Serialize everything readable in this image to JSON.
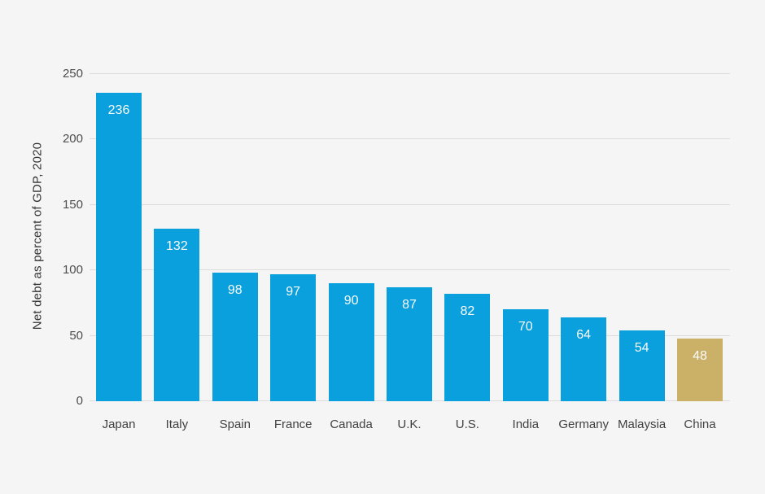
{
  "chart_data": {
    "type": "bar",
    "title": "",
    "ylabel": "Net debt as percent of GDP, 2020",
    "xlabel": "",
    "categories": [
      "Japan",
      "Italy",
      "Spain",
      "France",
      "Canada",
      "U.K.",
      "U.S.",
      "India",
      "Germany",
      "Malaysia",
      "China"
    ],
    "values": [
      236,
      132,
      98,
      97,
      90,
      87,
      82,
      70,
      64,
      54,
      48
    ],
    "highlight_category": "China",
    "value_labels_position": "inside-top",
    "yticks": [
      0,
      50,
      100,
      150,
      200,
      250
    ],
    "ylim": [
      0,
      250
    ],
    "grid": "horizontal",
    "legend": "none",
    "colors": {
      "bar": "#0aa0de",
      "bar_highlight": "#cbb168",
      "background": "#f5f5f5",
      "gridline": "#dcdcdc",
      "tick_text": "#4d4d4d",
      "category_text": "#3f3f3f",
      "axis_title_text": "#333333",
      "value_label_text": "#fafafa"
    }
  }
}
